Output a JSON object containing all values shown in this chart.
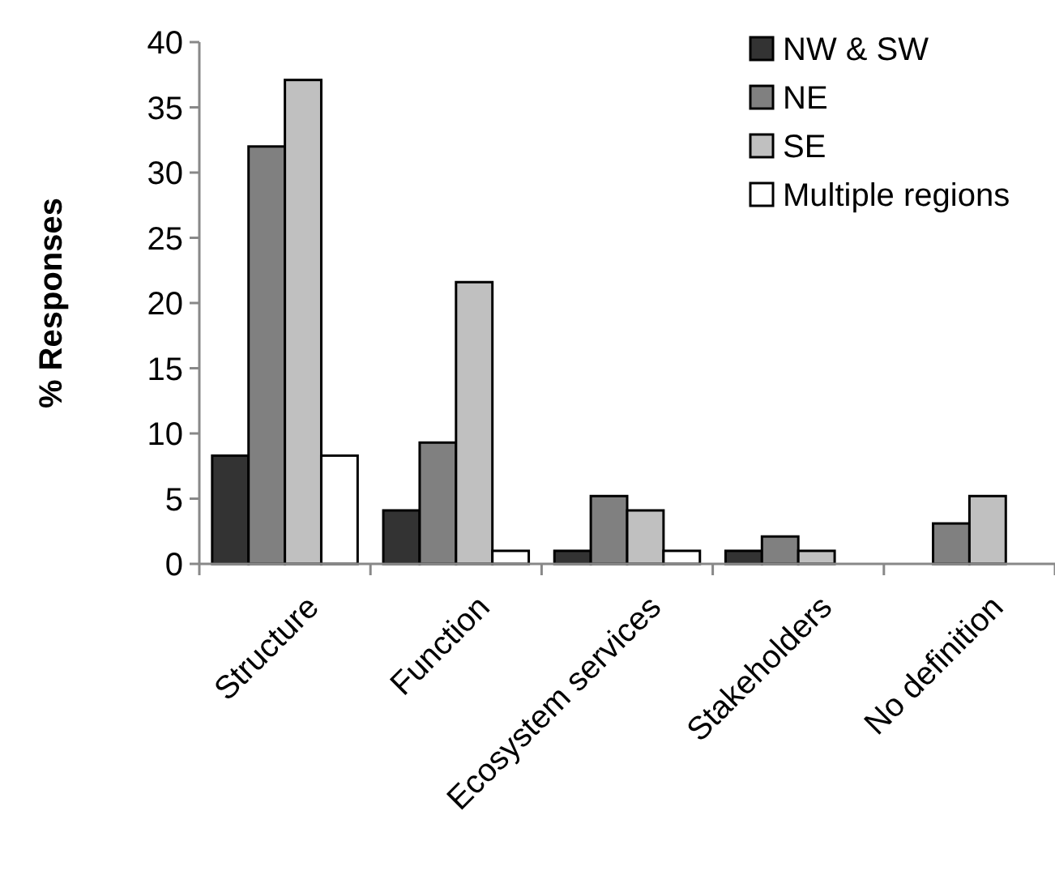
{
  "chart_data": {
    "type": "bar",
    "ylabel": "% Responses",
    "categories": [
      "Structure",
      "Function",
      "Ecosystem services",
      "Stakeholders",
      "No definition"
    ],
    "series": [
      {
        "name": "NW & SW",
        "color": "#333333",
        "values": [
          8.3,
          4.1,
          1,
          1,
          null
        ]
      },
      {
        "name": "NE",
        "color": "#808080",
        "values": [
          32,
          9.3,
          5.2,
          2.1,
          3.1
        ]
      },
      {
        "name": "SE",
        "color": "#c0c0c0",
        "values": [
          37.1,
          21.6,
          4.1,
          1,
          5.2
        ]
      },
      {
        "name": "Multiple regions",
        "color": "#ffffff",
        "values": [
          8.3,
          1,
          1,
          null,
          null
        ]
      }
    ],
    "ylim": [
      0,
      40
    ],
    "yticks": [
      0,
      5,
      10,
      15,
      20,
      25,
      30,
      35,
      40
    ],
    "legend": "top right"
  }
}
